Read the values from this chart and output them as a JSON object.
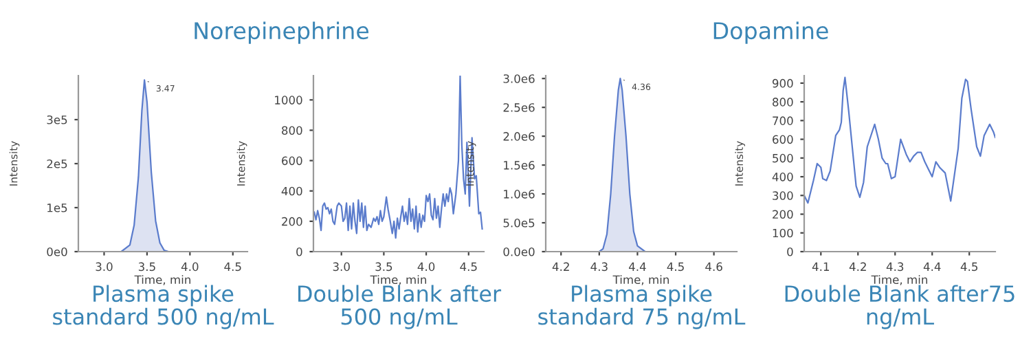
{
  "chart_data": [
    {
      "type": "area",
      "title": "Norepinephrine",
      "xlabel": "Time, min",
      "ylabel": "Intensity",
      "x": [
        2.7,
        3.2,
        3.3,
        3.35,
        3.4,
        3.44,
        3.47,
        3.5,
        3.55,
        3.6,
        3.65,
        3.7,
        3.75,
        4.67
      ],
      "series": [
        {
          "color": "#5b7ccc",
          "values": [
            0,
            0,
            15000,
            60000,
            170000,
            320000,
            390000,
            340000,
            180000,
            70000,
            20000,
            3000,
            0,
            0
          ]
        }
      ],
      "xlim": [
        2.7,
        4.67
      ],
      "xticks": [
        {
          "value": 3.0,
          "label": "3.0"
        },
        {
          "value": 3.5,
          "label": "3.5"
        },
        {
          "value": 4.0,
          "label": "4.0"
        },
        {
          "value": 4.5,
          "label": "4.5"
        }
      ],
      "ylim": [
        0,
        400000
      ],
      "yticks": [
        {
          "value": 0,
          "label": "0e0"
        },
        {
          "value": 100000,
          "label": "1e5"
        },
        {
          "value": 200000,
          "label": "2e5"
        },
        {
          "value": 300000,
          "label": "3e5"
        }
      ],
      "annotations": [
        {
          "text": "3.47",
          "x": 3.47,
          "y": 390000
        },
        "Plasma spike standard 500 ng/mL"
      ]
    },
    {
      "type": "line",
      "xlabel": "Time, min",
      "ylabel": "Intensity",
      "x": [
        2.68,
        2.7,
        2.72,
        2.74,
        2.76,
        2.78,
        2.8,
        2.82,
        2.84,
        2.86,
        2.88,
        2.9,
        2.92,
        2.95,
        2.97,
        3.0,
        3.02,
        3.04,
        3.06,
        3.08,
        3.1,
        3.12,
        3.14,
        3.16,
        3.18,
        3.2,
        3.22,
        3.24,
        3.26,
        3.28,
        3.3,
        3.32,
        3.35,
        3.38,
        3.4,
        3.42,
        3.44,
        3.46,
        3.48,
        3.5,
        3.53,
        3.55,
        3.57,
        3.6,
        3.62,
        3.64,
        3.66,
        3.68,
        3.7,
        3.72,
        3.74,
        3.76,
        3.78,
        3.8,
        3.82,
        3.84,
        3.86,
        3.88,
        3.9,
        3.92,
        3.94,
        3.96,
        3.98,
        4.0,
        4.02,
        4.04,
        4.06,
        4.08,
        4.1,
        4.12,
        4.14,
        4.16,
        4.18,
        4.2,
        4.22,
        4.24,
        4.26,
        4.28,
        4.3,
        4.32,
        4.35,
        4.38,
        4.4,
        4.42,
        4.44,
        4.46,
        4.48,
        4.51,
        4.54,
        4.57,
        4.59,
        4.62,
        4.64,
        4.66
      ],
      "series": [
        {
          "color": "#5b7ccc",
          "values": [
            260,
            210,
            270,
            220,
            140,
            300,
            320,
            280,
            290,
            250,
            280,
            200,
            180,
            300,
            320,
            300,
            200,
            220,
            320,
            140,
            300,
            150,
            320,
            200,
            120,
            340,
            200,
            320,
            160,
            300,
            140,
            180,
            160,
            220,
            200,
            230,
            180,
            270,
            200,
            230,
            360,
            280,
            220,
            120,
            200,
            90,
            220,
            150,
            230,
            300,
            200,
            260,
            180,
            350,
            200,
            280,
            150,
            300,
            130,
            250,
            160,
            240,
            200,
            370,
            330,
            380,
            240,
            210,
            350,
            220,
            300,
            160,
            280,
            380,
            300,
            380,
            330,
            420,
            380,
            250,
            380,
            600,
            1160,
            700,
            480,
            380,
            720,
            300,
            750,
            480,
            500,
            250,
            260,
            150
          ]
        }
      ],
      "xlim": [
        2.67,
        4.68
      ],
      "xticks": [
        {
          "value": 3.0,
          "label": "3.0"
        },
        {
          "value": 3.5,
          "label": "3.5"
        },
        {
          "value": 4.0,
          "label": "4.0"
        },
        {
          "value": 4.5,
          "label": "4.5"
        }
      ],
      "ylim": [
        0,
        1160
      ],
      "yticks": [
        0,
        200,
        400,
        600,
        800,
        1000
      ],
      "annotations": [
        "Double Blank after 500 ng/mL"
      ]
    },
    {
      "type": "area",
      "title": "Dopamine",
      "xlabel": "Time, min",
      "ylabel": "Intensity",
      "x": [
        4.16,
        4.3,
        4.31,
        4.32,
        4.33,
        4.34,
        4.35,
        4.355,
        4.36,
        4.37,
        4.38,
        4.39,
        4.4,
        4.42,
        4.66
      ],
      "series": [
        {
          "color": "#5b7ccc",
          "values": [
            0,
            0,
            50000,
            300000,
            1000000,
            2000000,
            2800000,
            3000000,
            2800000,
            2000000,
            1000000,
            350000,
            100000,
            0,
            0
          ]
        }
      ],
      "xlim": [
        4.16,
        4.66
      ],
      "xticks": [
        4.2,
        4.3,
        4.4,
        4.5,
        4.6
      ],
      "ylim": [
        0,
        3050000
      ],
      "yticks": [
        {
          "value": 0,
          "label": "0.0e0"
        },
        {
          "value": 500000,
          "label": "5.0e5"
        },
        {
          "value": 1000000,
          "label": "1.0e6"
        },
        {
          "value": 1500000,
          "label": "1.5e6"
        },
        {
          "value": 2000000,
          "label": "2.0e6"
        },
        {
          "value": 2500000,
          "label": "2.5e6"
        },
        {
          "value": 3000000,
          "label": "3.0e6"
        }
      ],
      "annotations": [
        {
          "text": "4.36",
          "x": 4.355,
          "y": 3000000
        },
        "Plasma spike standard 75 ng/mL"
      ]
    },
    {
      "type": "line",
      "xlabel": "Time, min",
      "ylabel": "Intensity",
      "x": [
        4.055,
        4.065,
        4.08,
        4.09,
        4.1,
        4.105,
        4.115,
        4.125,
        4.14,
        4.15,
        4.155,
        4.16,
        4.165,
        4.175,
        4.185,
        4.195,
        4.205,
        4.215,
        4.225,
        4.245,
        4.255,
        4.265,
        4.275,
        4.28,
        4.29,
        4.3,
        4.315,
        4.33,
        4.34,
        4.35,
        4.36,
        4.37,
        4.38,
        4.39,
        4.4,
        4.41,
        4.42,
        4.435,
        4.45,
        4.47,
        4.48,
        4.49,
        4.495,
        4.505,
        4.52,
        4.53,
        4.54,
        4.555,
        4.565,
        4.57
      ],
      "series": [
        {
          "color": "#5b7ccc",
          "values": [
            300,
            260,
            380,
            470,
            450,
            390,
            380,
            430,
            620,
            650,
            690,
            860,
            930,
            750,
            550,
            350,
            290,
            370,
            560,
            680,
            600,
            500,
            470,
            470,
            390,
            400,
            600,
            520,
            480,
            510,
            530,
            530,
            480,
            440,
            400,
            480,
            450,
            420,
            270,
            550,
            820,
            920,
            910,
            760,
            560,
            510,
            620,
            680,
            640,
            610
          ]
        }
      ],
      "xlim": [
        4.055,
        4.57
      ],
      "xticks": [
        4.1,
        4.2,
        4.3,
        4.4,
        4.5
      ],
      "ylim": [
        0,
        940
      ],
      "yticks": [
        0,
        100,
        200,
        300,
        400,
        500,
        600,
        700,
        800,
        900
      ],
      "annotations": [
        "Double Blank after75 ng/mL"
      ]
    }
  ]
}
